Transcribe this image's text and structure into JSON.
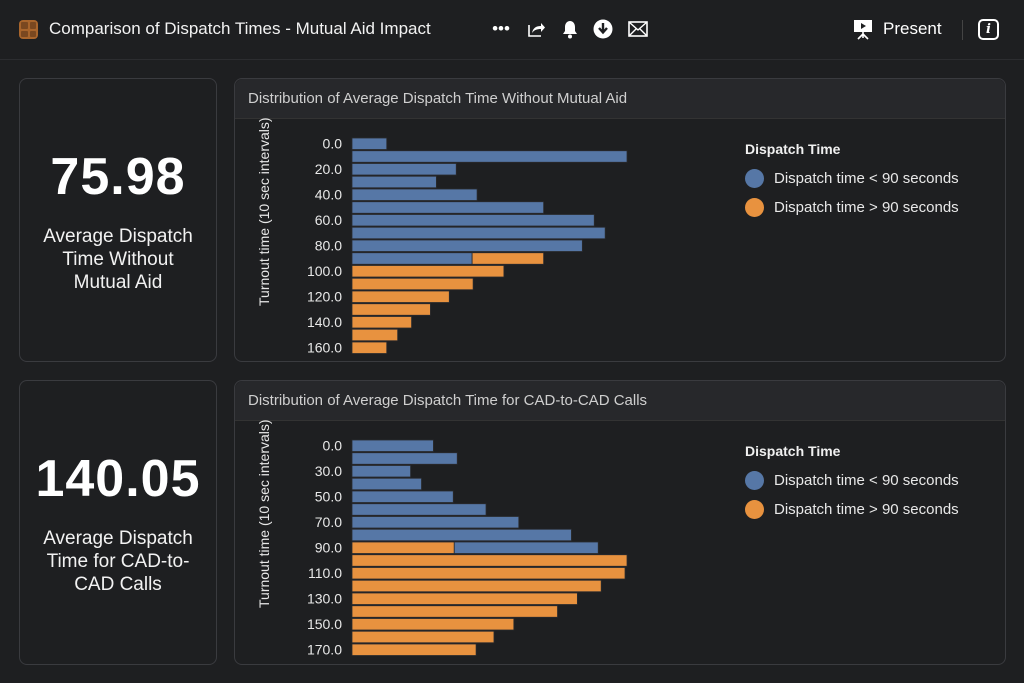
{
  "header": {
    "title": "Comparison of Dispatch Times - Mutual Aid Impact",
    "present_label": "Present",
    "icons": [
      "more-icon",
      "share-icon",
      "bell-icon",
      "download-icon",
      "mail-icon",
      "present-icon",
      "info-icon"
    ]
  },
  "colors": {
    "blue": "#5677a6",
    "orange": "#e8923f"
  },
  "kpis": [
    {
      "value": "75.98",
      "label": "Average Dispatch Time Without Mutual Aid"
    },
    {
      "value": "140.05",
      "label": "Average Dispatch Time for CAD-to-CAD Calls"
    }
  ],
  "legend": {
    "title": "Dispatch Time",
    "items": [
      "Dispatch time < 90 seconds",
      "Dispatch time > 90 seconds"
    ]
  },
  "chart_data": [
    {
      "type": "bar",
      "orientation": "horizontal",
      "stacked": true,
      "title": "Distribution of Average Dispatch Time Without Mutual Aid",
      "ylabel": "Turnout time (10 sec intervals)",
      "xlabel": "",
      "categories": [
        "0.0",
        "10.0",
        "20.0",
        "30.0",
        "40.0",
        "50.0",
        "60.0",
        "70.0",
        "80.0",
        "90.0",
        "100.0",
        "110.0",
        "120.0",
        "130.0",
        "140.0",
        "150.0",
        "160.0"
      ],
      "tick_labels": [
        "0.0",
        "20.0",
        "40.0",
        "60.0",
        "80.0",
        "100.0",
        "120.0",
        "140.0",
        "160.0"
      ],
      "series": [
        {
          "name": "Dispatch time < 90 seconds",
          "values": [
            35,
            277,
            105,
            85,
            126,
            193,
            244,
            255,
            232,
            121,
            0,
            0,
            0,
            0,
            0,
            0,
            0
          ]
        },
        {
          "name": "Dispatch time > 90 seconds",
          "values": [
            0,
            0,
            0,
            0,
            0,
            0,
            0,
            0,
            0,
            72,
            153,
            122,
            98,
            79,
            60,
            46,
            35
          ]
        }
      ],
      "stack_first": [
        0,
        0,
        0,
        0,
        0,
        0,
        0,
        0,
        0,
        0,
        1,
        1,
        1,
        1,
        1,
        1,
        1
      ],
      "xlim": [
        0,
        280
      ]
    },
    {
      "type": "bar",
      "orientation": "horizontal",
      "stacked": true,
      "title": "Distribution of Average Dispatch Time for CAD-to-CAD Calls",
      "ylabel": "Turnout time (10 sec intervals)",
      "xlabel": "",
      "categories": [
        "0.0",
        "20.0",
        "30.0",
        "40.0",
        "50.0",
        "60.0",
        "70.0",
        "80.0",
        "90.0",
        "100.0",
        "110.0",
        "120.0",
        "130.0",
        "140.0",
        "150.0",
        "160.0",
        "170.0"
      ],
      "tick_labels": [
        "0.0",
        "30.0",
        "50.0",
        "70.0",
        "90.0",
        "110.0",
        "130.0",
        "150.0",
        "170.0"
      ],
      "series": [
        {
          "name": "Dispatch time < 90 seconds",
          "values": [
            82,
            106,
            59,
            70,
            102,
            135,
            168,
            221,
            145,
            0,
            0,
            0,
            0,
            0,
            0,
            0,
            0
          ]
        },
        {
          "name": "Dispatch time > 90 seconds",
          "values": [
            0,
            0,
            0,
            0,
            0,
            0,
            0,
            0,
            103,
            277,
            275,
            251,
            227,
            207,
            163,
            143,
            125
          ]
        }
      ],
      "stack_first": [
        0,
        0,
        0,
        0,
        0,
        0,
        0,
        0,
        1,
        1,
        1,
        1,
        1,
        1,
        1,
        1,
        1
      ],
      "xlim": [
        0,
        280
      ]
    }
  ]
}
